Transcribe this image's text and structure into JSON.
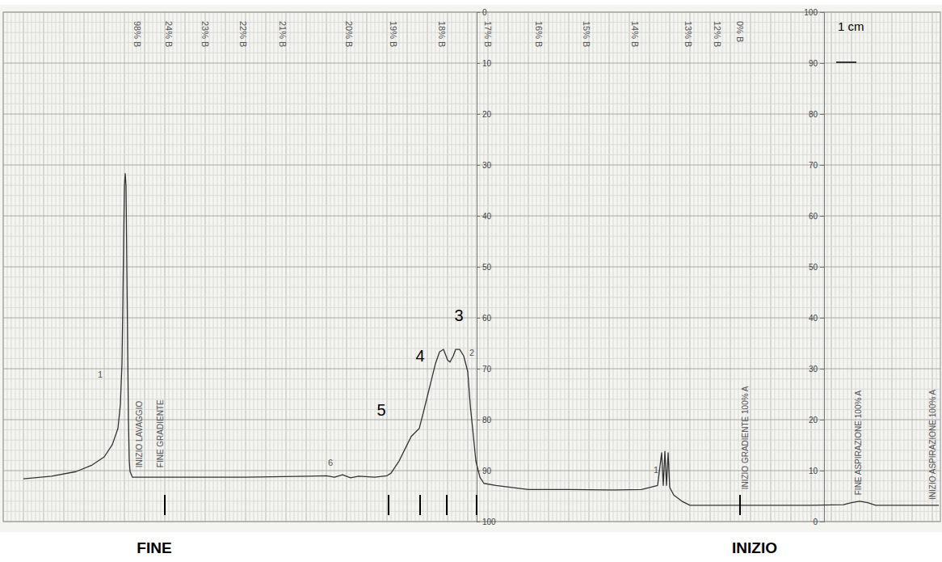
{
  "chart_data": {
    "type": "line",
    "xlim": [
      0,
      46.4
    ],
    "ylim": [
      0,
      100
    ],
    "yticks": [
      0,
      10,
      20,
      30,
      40,
      50,
      60,
      70,
      80,
      90,
      100
    ],
    "y2lim": [
      100,
      0
    ],
    "y2ticks": [
      0,
      10,
      20,
      30,
      40,
      50,
      60,
      70,
      80,
      90,
      100
    ],
    "grid": true,
    "tick_labels": "y",
    "color": "#333333",
    "x": [
      1.0,
      2.4,
      3.6,
      4.4,
      5.0,
      5.4,
      5.68,
      5.8,
      5.88,
      5.92,
      5.96,
      6.0,
      6.04,
      6.08,
      6.12,
      6.16,
      6.2,
      6.24,
      6.28,
      6.4,
      8.0,
      12.0,
      15.2,
      16.0,
      16.4,
      16.8,
      17.2,
      17.6,
      18.4,
      19.0,
      19.2,
      19.6,
      20.0,
      20.2,
      20.4,
      20.6,
      20.8,
      21.0,
      21.2,
      21.4,
      21.6,
      21.8,
      22.0,
      22.12,
      22.28,
      22.4,
      22.6,
      22.8,
      23.0,
      23.12,
      23.28,
      23.4,
      23.6,
      23.8,
      24.4,
      26.0,
      28.0,
      30.0,
      31.6,
      32.4,
      32.6,
      32.68,
      32.76,
      32.84,
      32.92,
      33.0,
      33.2,
      33.6,
      34.0,
      36.0,
      40.0,
      41.6,
      42.0,
      42.4,
      42.8,
      43.2,
      45.2,
      46.32
    ],
    "values": [
      8.4,
      8.9,
      9.8,
      11.1,
      12.7,
      15.1,
      18.3,
      23.0,
      31.0,
      42.1,
      54.8,
      65.9,
      68.3,
      65.9,
      50.0,
      34.1,
      19.8,
      11.9,
      9.8,
      8.7,
      8.7,
      8.7,
      8.9,
      9.0,
      8.7,
      9.2,
      8.6,
      8.9,
      8.7,
      9.0,
      9.5,
      11.9,
      15.1,
      16.7,
      17.5,
      18.3,
      21.4,
      24.6,
      27.8,
      31.0,
      33.3,
      33.8,
      31.7,
      31.3,
      32.5,
      33.8,
      33.8,
      32.5,
      29.4,
      23.0,
      16.7,
      11.9,
      8.7,
      7.5,
      7.1,
      6.3,
      6.3,
      6.2,
      6.3,
      7.1,
      13.5,
      7.1,
      13.8,
      7.1,
      13.5,
      6.7,
      5.2,
      4.0,
      3.2,
      3.2,
      3.2,
      3.3,
      3.7,
      4.0,
      3.7,
      3.2,
      3.2,
      3.2
    ],
    "gradient_labels": [
      {
        "text": "98% B",
        "x": 6.64
      },
      {
        "text": "24% B",
        "x": 8.2
      },
      {
        "text": "23% B",
        "x": 10.0
      },
      {
        "text": "22% B",
        "x": 11.88
      },
      {
        "text": "21% B",
        "x": 13.84
      },
      {
        "text": "20% B",
        "x": 17.12
      },
      {
        "text": "19% B",
        "x": 19.32
      },
      {
        "text": "18% B",
        "x": 21.72
      },
      {
        "text": "17% B",
        "x": 24.0
      },
      {
        "text": "16% B",
        "x": 26.52
      },
      {
        "text": "15% B",
        "x": 28.88
      },
      {
        "text": "14% B",
        "x": 31.28
      },
      {
        "text": "13% B",
        "x": 33.92
      },
      {
        "text": "12% B",
        "x": 35.36
      },
      {
        "text": "0% B",
        "x": 36.48
      }
    ],
    "notes": [
      {
        "text": "INIZIO LAVAGGIO",
        "x": 6.72,
        "y": 10.6
      },
      {
        "text": "FINE GRADIENTE",
        "x": 7.76,
        "y": 10.6
      },
      {
        "text": "INIZIO GRADIENTE 100% A",
        "x": 36.72,
        "y": 6.3
      },
      {
        "text": "FINE ASPIRAZIONE 100% A",
        "x": 42.32,
        "y": 5.2
      },
      {
        "text": "INIZIO ASPIRAZIONE 100% A",
        "x": 46.0,
        "y": 4.3
      }
    ],
    "peak_labels": [
      {
        "text": "3",
        "x": 22.56,
        "y": 39.4
      },
      {
        "text": "4",
        "x": 20.64,
        "y": 31.4
      },
      {
        "text": "5",
        "x": 18.72,
        "y": 20.8
      }
    ],
    "peak_notes": [
      {
        "text": "1",
        "x": 4.8,
        "y": 28.3
      },
      {
        "text": "6",
        "x": 16.2,
        "y": 11.0
      },
      {
        "text": "2",
        "x": 23.2,
        "y": 32.5
      },
      {
        "text": "1",
        "x": 32.32,
        "y": 9.5
      }
    ],
    "fraction_cuts": [
      8.0,
      19.08,
      20.64,
      21.96,
      23.44,
      36.48
    ],
    "scale_bar": {
      "label": "1 cm",
      "length": 1
    },
    "direction_labels": [
      {
        "text": "FINE",
        "x": 7.48
      },
      {
        "text": "INIZIO",
        "x": 37.2
      }
    ]
  }
}
